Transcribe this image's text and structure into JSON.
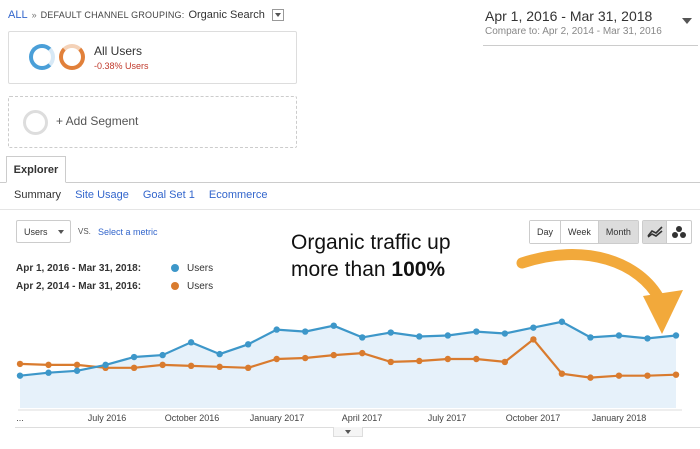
{
  "breadcrumb": {
    "link": "ALL",
    "separator": "»",
    "grouping_label": "DEFAULT CHANNEL GROUPING:",
    "grouping_value": "Organic Search"
  },
  "date_range": {
    "main": "Apr 1, 2016 - Mar 31, 2018",
    "compare": "Compare to: Apr 2, 2014 - Mar 31, 2016"
  },
  "segment": {
    "title": "All Users",
    "change": "-0.38% Users"
  },
  "add_segment": {
    "label": "+ Add Segment"
  },
  "explorer_tab": {
    "label": "Explorer"
  },
  "subtabs": [
    "Summary",
    "Site Usage",
    "Goal Set 1",
    "Ecommerce"
  ],
  "metric_select": {
    "value": "Users"
  },
  "vs_label": "VS.",
  "select_metric": "Select a metric",
  "granularity": [
    "Day",
    "Week",
    "Month"
  ],
  "legend": [
    {
      "date": "Apr 1, 2016 - Mar 31, 2018:",
      "series": "Users"
    },
    {
      "date": "Apr 2, 2014 - Mar 31, 2016:",
      "series": "Users"
    }
  ],
  "annotation": {
    "line1": "Organic traffic up",
    "line2_prefix": "more than ",
    "line2_bold": "100%"
  },
  "colors": {
    "current": "#3d97c9",
    "previous": "#d97b2e",
    "area": "#e6f1fa",
    "arrow": "#f2a93b"
  },
  "chart_data": {
    "type": "line",
    "x_ticks": [
      "...",
      "July 2016",
      "October 2016",
      "January 2017",
      "April 2017",
      "July 2017",
      "October 2017",
      "January 2018"
    ],
    "ylim": [
      0,
      100
    ],
    "series": [
      {
        "name": "Users",
        "period": "Apr 1, 2016 - Mar 31, 2018",
        "values": [
          33,
          36,
          38,
          44,
          52,
          54,
          67,
          55,
          65,
          80,
          78,
          84,
          72,
          77,
          73,
          74,
          78,
          76,
          82,
          88,
          72,
          74,
          71,
          74
        ]
      },
      {
        "name": "Users",
        "period": "Apr 2, 2014 - Mar 31, 2016",
        "values": [
          45,
          44,
          44,
          41,
          41,
          44,
          43,
          42,
          41,
          50,
          51,
          54,
          56,
          47,
          48,
          50,
          50,
          47,
          70,
          35,
          31,
          33,
          33,
          34
        ]
      }
    ]
  }
}
